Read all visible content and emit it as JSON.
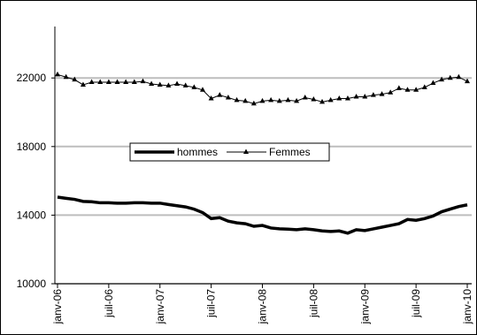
{
  "chart_data": {
    "type": "line",
    "categories": [
      "janv-06",
      null,
      null,
      null,
      null,
      null,
      "juil-06",
      null,
      null,
      null,
      null,
      null,
      "janv-07",
      null,
      null,
      null,
      null,
      null,
      "juil-07",
      null,
      null,
      null,
      null,
      null,
      "janv-08",
      null,
      null,
      null,
      null,
      null,
      "juil-08",
      null,
      null,
      null,
      null,
      null,
      "janv-09",
      null,
      null,
      null,
      null,
      null,
      "juil-09",
      null,
      null,
      null,
      null,
      null,
      "janv-10"
    ],
    "series": [
      {
        "name": "hommes",
        "color": "#000000",
        "marker": "none",
        "values": [
          15050,
          14980,
          14920,
          14800,
          14780,
          14720,
          14720,
          14700,
          14700,
          14720,
          14720,
          14700,
          14700,
          14620,
          14550,
          14480,
          14350,
          14150,
          13800,
          13850,
          13650,
          13550,
          13500,
          13350,
          13400,
          13250,
          13200,
          13180,
          13150,
          13200,
          13150,
          13080,
          13050,
          13080,
          12950,
          13150,
          13100,
          13200,
          13300,
          13400,
          13500,
          13750,
          13700,
          13800,
          13950,
          14200,
          14350,
          14500,
          14600
        ]
      },
      {
        "name": "Femmes",
        "color": "#000000",
        "marker": "triangle",
        "values": [
          22200,
          22050,
          21900,
          21600,
          21750,
          21750,
          21750,
          21750,
          21750,
          21750,
          21800,
          21650,
          21600,
          21550,
          21650,
          21550,
          21450,
          21300,
          20800,
          21000,
          20850,
          20700,
          20650,
          20500,
          20650,
          20700,
          20650,
          20700,
          20650,
          20850,
          20750,
          20600,
          20700,
          20800,
          20800,
          20900,
          20900,
          21000,
          21050,
          21150,
          21400,
          21300,
          21300,
          21450,
          21700,
          21900,
          22000,
          22050,
          21800
        ]
      }
    ],
    "ylim": [
      10000,
      25000
    ],
    "yticks": [
      10000,
      14000,
      18000,
      22000
    ],
    "grid": true
  }
}
